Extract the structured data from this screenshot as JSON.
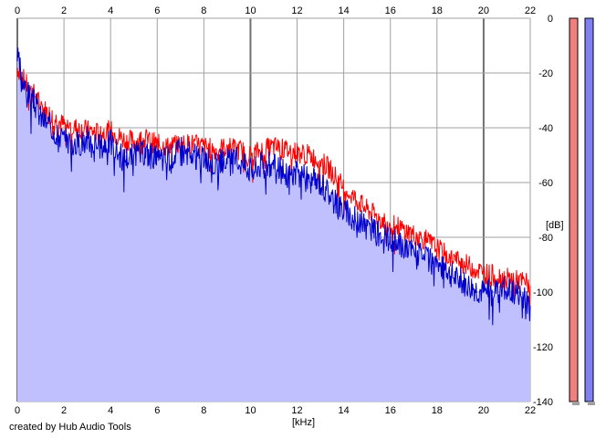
{
  "labels": {
    "x_unit": "[kHz]",
    "y_unit": "[dB]",
    "credit": "created by Hub Audio Tools"
  },
  "colors": {
    "red_channel": "#ff0000",
    "blue_channel": "#0000cc",
    "fill": "#c0c0ff",
    "grid": "#a0a0a0",
    "grid_major": "#707070",
    "meter_left": "#f08080",
    "meter_right": "#8080f0"
  },
  "chart_data": {
    "type": "line",
    "xlabel": "[kHz]",
    "ylabel": "[dB]",
    "xlim": [
      0,
      22
    ],
    "ylim": [
      -140,
      0
    ],
    "x_ticks": [
      "0",
      "2",
      "4",
      "6",
      "8",
      "10",
      "12",
      "14",
      "16",
      "18",
      "20",
      "22"
    ],
    "y_ticks": [
      "0",
      "-20",
      "-40",
      "-60",
      "-80",
      "-100",
      "-120",
      "-140"
    ],
    "grid": true,
    "series": [
      {
        "color": "#ff0000",
        "x": [
          0,
          0.25,
          0.5,
          0.75,
          1,
          1.5,
          2,
          2.5,
          3,
          3.5,
          4,
          4.5,
          5,
          5.5,
          6,
          6.5,
          7,
          7.5,
          8,
          8.5,
          9,
          9.5,
          10,
          10.5,
          11,
          11.5,
          12,
          12.5,
          13,
          13.5,
          14,
          14.5,
          15,
          15.5,
          16,
          16.5,
          17,
          17.5,
          18,
          18.5,
          19,
          19.5,
          20,
          20.5,
          21,
          21.5,
          22
        ],
        "y": [
          -18,
          -22,
          -26,
          -28,
          -32,
          -36,
          -39,
          -40,
          -41,
          -42,
          -41,
          -44,
          -45,
          -44,
          -46,
          -47,
          -46,
          -46,
          -47,
          -48,
          -47,
          -48,
          -50,
          -48,
          -47,
          -48,
          -49,
          -50,
          -52,
          -56,
          -62,
          -66,
          -70,
          -73,
          -75,
          -77,
          -79,
          -81,
          -84,
          -87,
          -89,
          -91,
          -93,
          -94,
          -95,
          -96,
          -97
        ]
      },
      {
        "color": "#0000cc",
        "x": [
          0,
          0.25,
          0.5,
          0.75,
          1,
          1.5,
          2,
          2.5,
          3,
          3.5,
          4,
          4.5,
          5,
          5.5,
          6,
          6.5,
          7,
          7.5,
          8,
          8.5,
          9,
          9.5,
          10,
          10.5,
          11,
          11.5,
          12,
          12.5,
          13,
          13.5,
          14,
          14.5,
          15,
          15.5,
          16,
          16.5,
          17,
          17.5,
          18,
          18.5,
          19,
          19.5,
          20,
          20.5,
          21,
          21.5,
          22
        ],
        "y": [
          -14,
          -24,
          -28,
          -31,
          -36,
          -40,
          -44,
          -46,
          -44,
          -47,
          -45,
          -51,
          -50,
          -49,
          -51,
          -51,
          -48,
          -50,
          -52,
          -53,
          -52,
          -52,
          -55,
          -53,
          -54,
          -57,
          -57,
          -59,
          -60,
          -65,
          -70,
          -73,
          -76,
          -79,
          -81,
          -83,
          -85,
          -88,
          -90,
          -93,
          -96,
          -98,
          -100,
          -99,
          -99,
          -100,
          -106
        ]
      }
    ]
  }
}
